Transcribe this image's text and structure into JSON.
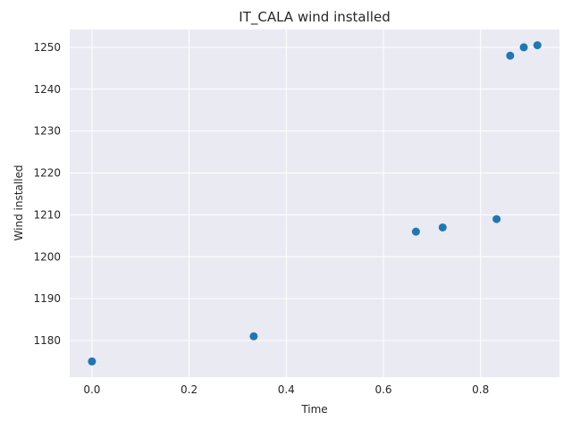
{
  "chart_data": {
    "type": "scatter",
    "title": "IT_CALA wind installed",
    "xlabel": "Time",
    "ylabel": "Wind installed",
    "xlim": [
      -0.0458,
      0.9625
    ],
    "ylim": [
      1171.25,
      1254.25
    ],
    "xticks": [
      0.0,
      0.2,
      0.4,
      0.6,
      0.8
    ],
    "xtick_labels": [
      "0.0",
      "0.2",
      "0.4",
      "0.6",
      "0.8"
    ],
    "yticks": [
      1180,
      1190,
      1200,
      1210,
      1220,
      1230,
      1240,
      1250
    ],
    "ytick_labels": [
      "1180",
      "1190",
      "1200",
      "1210",
      "1220",
      "1230",
      "1240",
      "1250"
    ],
    "grid": true,
    "color": "#1f77b4",
    "points": [
      {
        "x": 0.0,
        "y": 1175
      },
      {
        "x": 0.333,
        "y": 1181
      },
      {
        "x": 0.667,
        "y": 1206
      },
      {
        "x": 0.722,
        "y": 1207
      },
      {
        "x": 0.833,
        "y": 1209
      },
      {
        "x": 0.861,
        "y": 1248
      },
      {
        "x": 0.889,
        "y": 1250
      },
      {
        "x": 0.917,
        "y": 1250.5
      }
    ]
  }
}
